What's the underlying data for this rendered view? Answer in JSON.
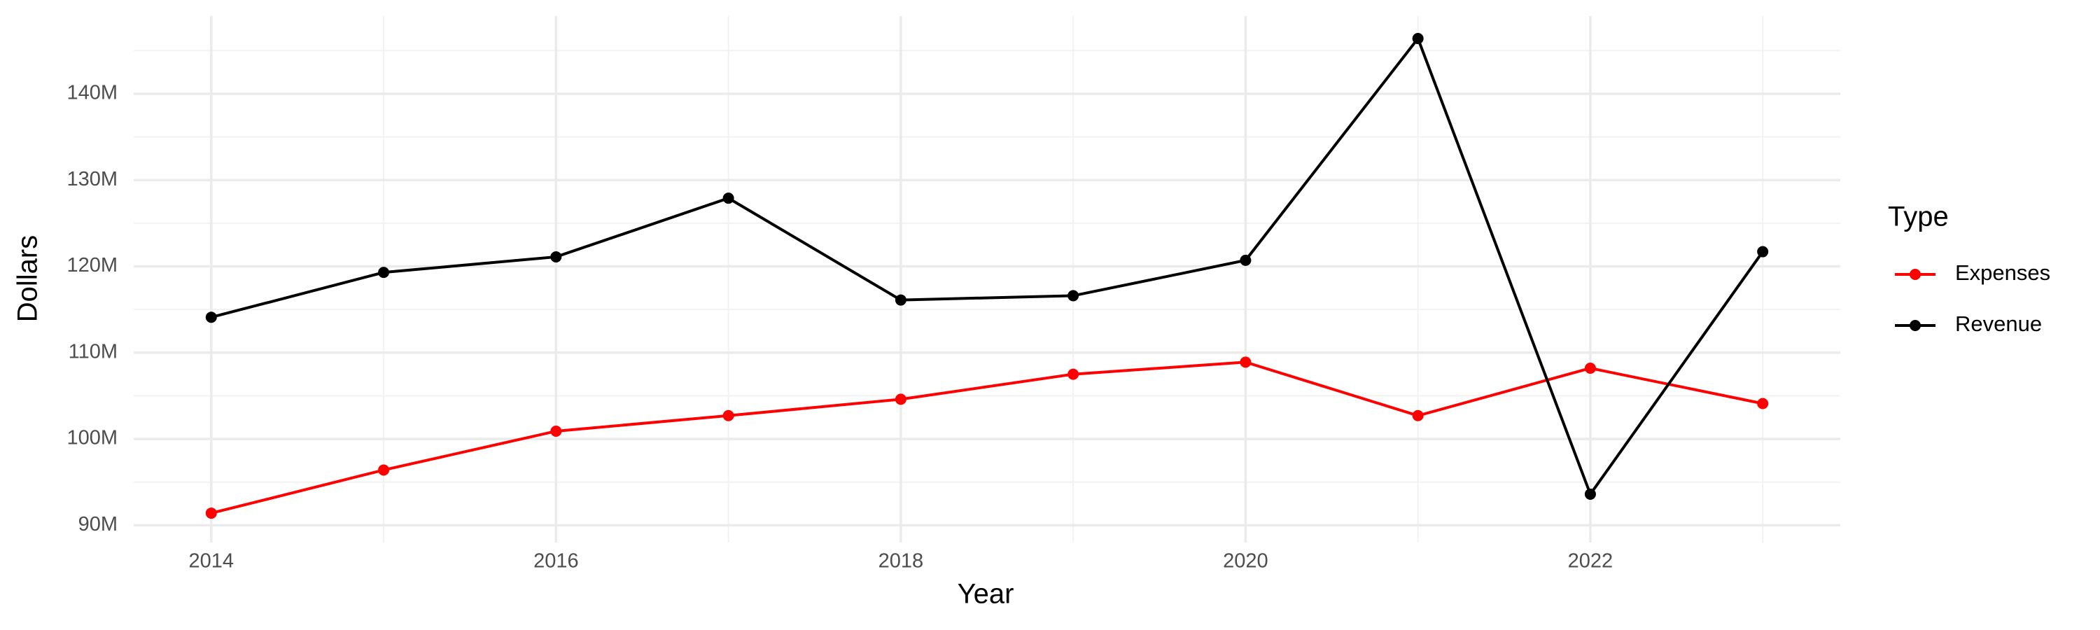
{
  "chart_data": {
    "type": "line",
    "x_label": "Year",
    "y_label": "Dollars",
    "x": [
      2014,
      2015,
      2016,
      2017,
      2018,
      2019,
      2020,
      2021,
      2022,
      2023
    ],
    "series": [
      {
        "name": "Expenses",
        "color": "#ff0000",
        "values": [
          91400000,
          96400000,
          100900000,
          102700000,
          104600000,
          107500000,
          108900000,
          102700000,
          108200000,
          104100000
        ]
      },
      {
        "name": "Revenue",
        "color": "#000000",
        "values": [
          114100000,
          119300000,
          121100000,
          127900000,
          116100000,
          116600000,
          120700000,
          146400000,
          93600000,
          121700000
        ]
      }
    ],
    "xlim": [
      2013.55,
      2023.45
    ],
    "xticks": [
      2014,
      2016,
      2018,
      2020,
      2022
    ],
    "ylim": [
      88000000,
      149000000
    ],
    "yticks": [
      {
        "value": 90000000,
        "label": "90M"
      },
      {
        "value": 100000000,
        "label": "100M"
      },
      {
        "value": 110000000,
        "label": "110M"
      },
      {
        "value": 120000000,
        "label": "120M"
      },
      {
        "value": 130000000,
        "label": "130M"
      },
      {
        "value": 140000000,
        "label": "140M"
      }
    ],
    "grid": true,
    "legend": "right",
    "legend_title": "Type"
  }
}
